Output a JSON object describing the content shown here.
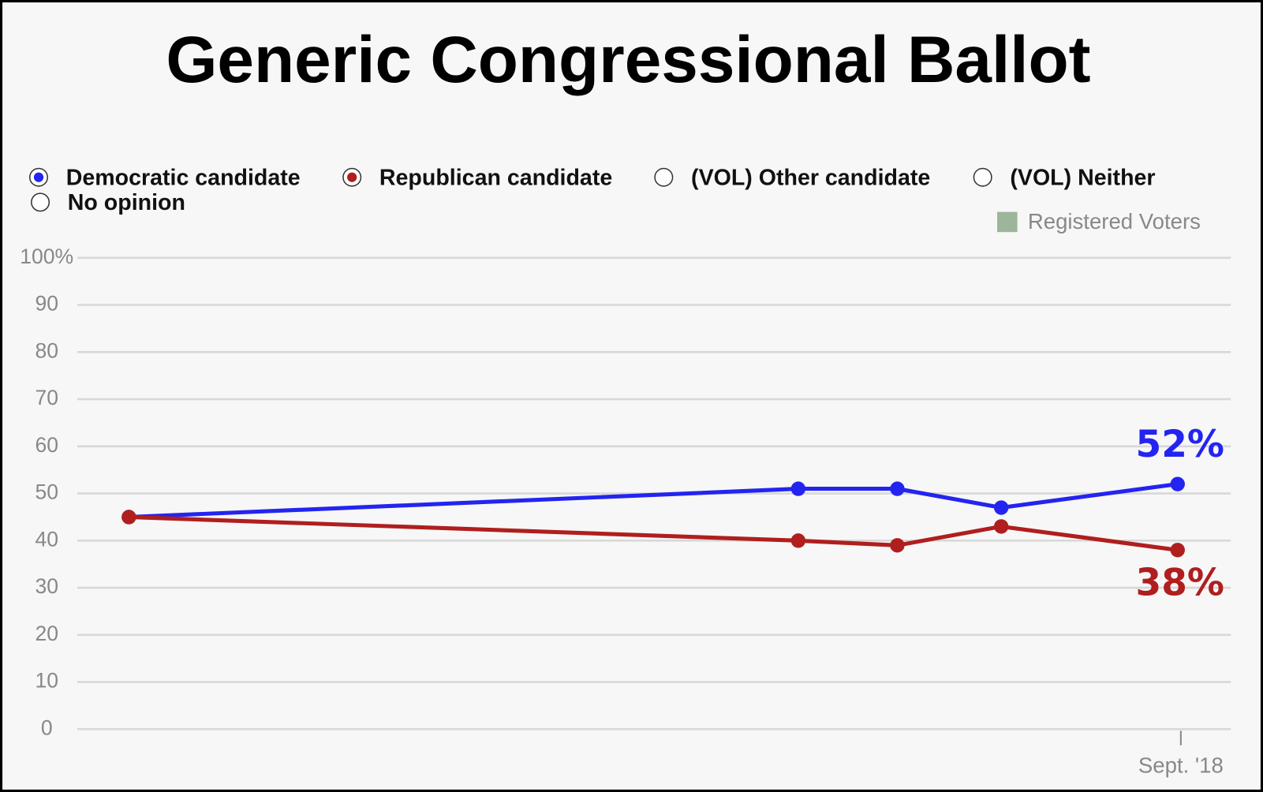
{
  "chart_data": {
    "type": "line",
    "title": "Generic Congressional Ballot",
    "categories": [
      null,
      null,
      null,
      null,
      "Sept. '18"
    ],
    "series": [
      {
        "name": "Democratic candidate",
        "color": "#2424f0",
        "values": [
          45,
          51,
          51,
          47,
          52
        ],
        "value_labels": [
          null,
          null,
          null,
          null,
          "52%"
        ]
      },
      {
        "name": "Republican candidate",
        "color": "#b01e1e",
        "values": [
          45,
          40,
          39,
          43,
          38
        ],
        "value_labels": [
          null,
          null,
          null,
          null,
          "38%"
        ]
      },
      {
        "name": "(VOL) Other candidate",
        "color": "#ffffff",
        "values": [
          null,
          null,
          null,
          null,
          null
        ]
      },
      {
        "name": "(VOL) Neither",
        "color": "#ffffff",
        "values": [
          null,
          null,
          null,
          null,
          null
        ]
      },
      {
        "name": "No opinion",
        "color": "#ffffff",
        "values": [
          null,
          null,
          null,
          null,
          null
        ]
      }
    ],
    "filter": {
      "label": "Registered Voters",
      "color": "#9db59a"
    },
    "ylim": [
      0,
      100
    ],
    "yticks": [
      0,
      10,
      20,
      30,
      40,
      50,
      60,
      70,
      80,
      90,
      {
        "value": 100,
        "label": "100%"
      }
    ],
    "grid": true
  }
}
